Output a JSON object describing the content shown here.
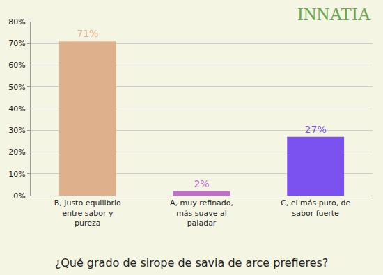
{
  "chart_data": {
    "type": "bar",
    "title": "¿Qué grado de sirope de savia de arce prefieres?",
    "annotations": [
      "INNATIA"
    ],
    "categories": [
      "B, justo equilibrio entre sabor y pureza",
      "A, muy refinado, más suave al paladar",
      "C, el más puro, de sabor fuerte"
    ],
    "values": [
      71,
      2,
      27
    ],
    "value_labels": [
      "71%",
      "2%",
      "27%"
    ],
    "colors": [
      "#deb08c",
      "#c46cd0",
      "#7b52f0"
    ],
    "data_labels": true,
    "ylim": [
      0,
      80
    ],
    "yticks": [
      {
        "value": 0,
        "label": "0%"
      },
      {
        "value": 10,
        "label": "10%"
      },
      {
        "value": 20,
        "label": "20%"
      },
      {
        "value": 30,
        "label": "30%"
      },
      {
        "value": 40,
        "label": "40%"
      },
      {
        "value": 50,
        "label": "50%"
      },
      {
        "value": 60,
        "label": "60%"
      },
      {
        "value": 70,
        "label": "70%"
      },
      {
        "value": 80,
        "label": "80%"
      }
    ],
    "grid": true
  }
}
